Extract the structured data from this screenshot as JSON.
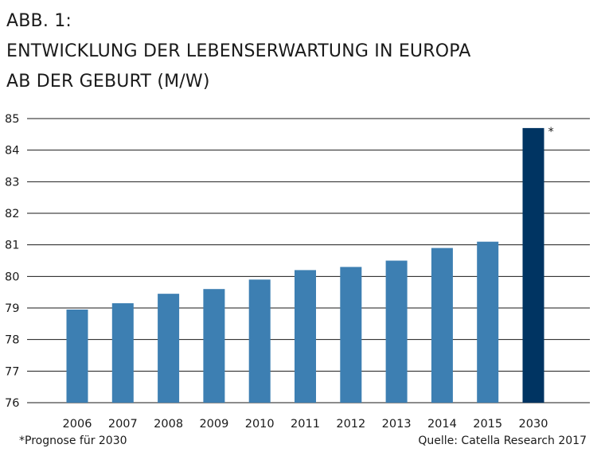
{
  "title": {
    "line1": "ABB. 1:",
    "line2": "ENTWICKLUNG DER LEBENSERWARTUNG IN EUROPA",
    "line3": "AB DER GEBURT (M/W)"
  },
  "footnote": "*Prognose für 2030",
  "source": "Quelle: Catella Research 2017",
  "colors": {
    "bar": "#3d7fb2",
    "bar_forecast": "#003462",
    "grid": "#1a1a1a"
  },
  "chart_data": {
    "type": "bar",
    "categories": [
      "2006",
      "2007",
      "2008",
      "2009",
      "2010",
      "2011",
      "2012",
      "2013",
      "2014",
      "2015",
      "2030"
    ],
    "values": [
      78.95,
      79.15,
      79.45,
      79.6,
      79.9,
      80.2,
      80.3,
      80.5,
      80.9,
      81.1,
      84.7
    ],
    "forecast_categories": [
      "2030"
    ],
    "forecast_marker": "*",
    "ylim": [
      76,
      85
    ],
    "yticks": [
      "76",
      "77",
      "78",
      "79",
      "80",
      "81",
      "82",
      "83",
      "84",
      "85"
    ],
    "title": "",
    "xlabel": "",
    "ylabel": "",
    "grid": true
  }
}
